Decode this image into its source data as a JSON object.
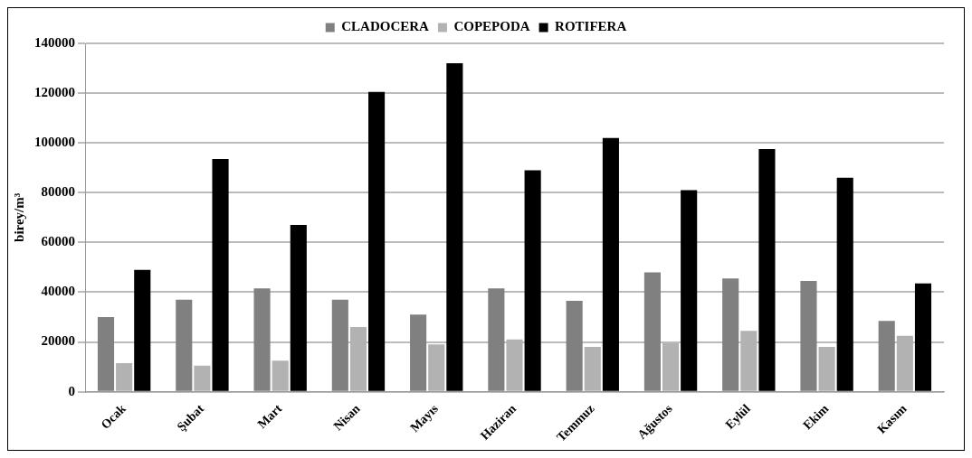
{
  "chart_data": {
    "type": "bar",
    "ylabel": "birey/m³",
    "categories": [
      "Ocak",
      "Şubat",
      "Mart",
      "Nisan",
      "Mayıs",
      "Haziran",
      "Temmuz",
      "Ağustos",
      "Eylül",
      "Ekim",
      "Kasım"
    ],
    "series": [
      {
        "name": "CLADOCERA",
        "color": "#808080",
        "values": [
          30000,
          37000,
          41500,
          37000,
          31000,
          41500,
          36500,
          48000,
          45500,
          44500,
          28500
        ]
      },
      {
        "name": "COPEPODA",
        "color": "#b2b2b2",
        "values": [
          11500,
          10500,
          12500,
          26000,
          19000,
          21000,
          18000,
          19500,
          24500,
          18000,
          22500
        ]
      },
      {
        "name": "ROTIFERA",
        "color": "#000000",
        "values": [
          49000,
          93500,
          67000,
          120500,
          132000,
          89000,
          102000,
          81000,
          97500,
          86000,
          43500
        ]
      }
    ],
    "ylim": [
      0,
      140000
    ],
    "yticks": [
      0,
      20000,
      40000,
      60000,
      80000,
      100000,
      120000,
      140000
    ],
    "grid": "y",
    "legend": "top"
  }
}
